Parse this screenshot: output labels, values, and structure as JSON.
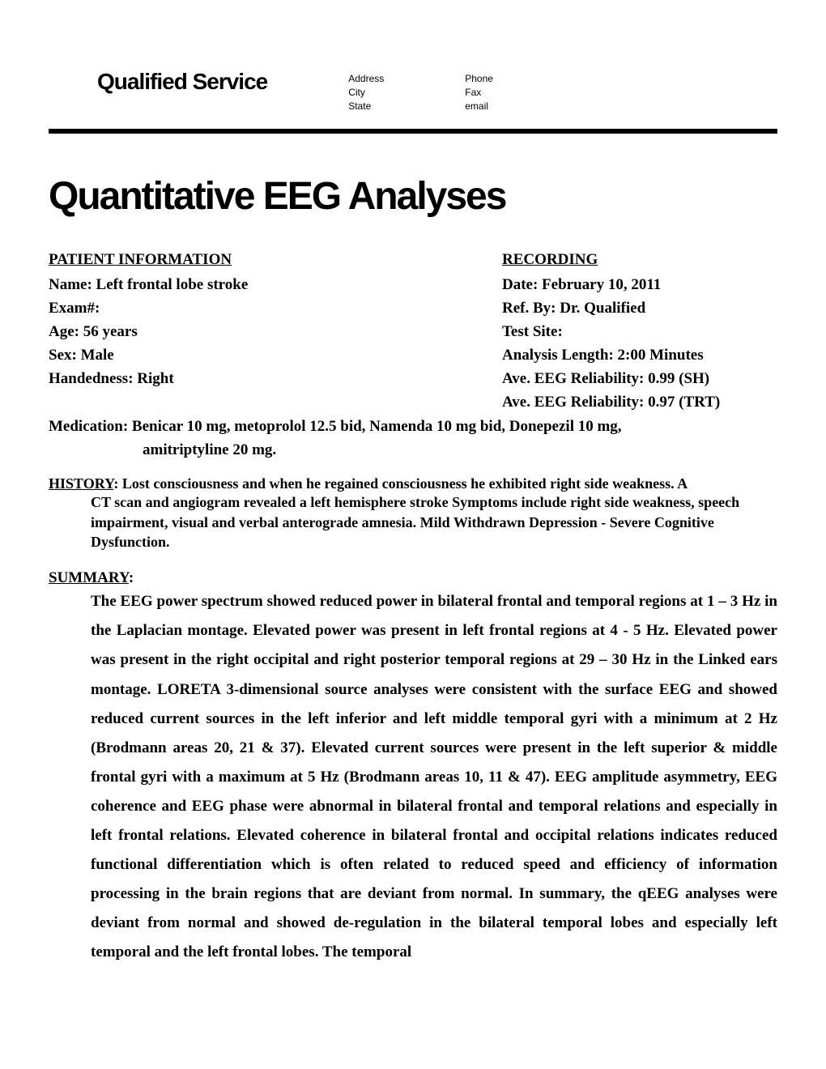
{
  "header": {
    "service_name": "Qualified Service",
    "col1": {
      "line1": "Address",
      "line2": "City",
      "line3": "State"
    },
    "col2": {
      "line1": "Phone",
      "line2": "Fax",
      "line3": "email"
    }
  },
  "main_title": "Quantitative EEG Analyses",
  "patient_info": {
    "header": "PATIENT INFORMATION",
    "name": "Name: Left frontal lobe stroke",
    "exam": "Exam#:",
    "age": "Age: 56 years",
    "sex": "Sex:  Male",
    "handedness": "Handedness:  Right"
  },
  "recording": {
    "header": "RECORDING ",
    "date": "Date: February 10, 2011",
    "ref_by": "Ref. By: Dr. Qualified",
    "test_site": "Test Site:",
    "analysis_length": "Analysis Length: 2:00 Minutes",
    "reliability_sh": "Ave. EEG Reliability: 0.99 (SH)",
    "reliability_trt": "Ave. EEG Reliability: 0.97 (TRT)"
  },
  "medication": {
    "line1": "Medication:  Benicar 10 mg, metoprolol 12.5 bid, Namenda 10 mg bid, Donepezil 10 mg,",
    "line2": "amitriptyline 20 mg."
  },
  "history": {
    "label": "HISTORY",
    "first_line": ":  Lost consciousness and when he regained consciousness he exhibited right side weakness.  A",
    "body": "CT scan and angiogram revealed a left hemisphere stroke  Symptoms include right side weakness, speech impairment, visual and verbal anterograde amnesia. Mild Withdrawn Depression - Severe Cognitive Dysfunction."
  },
  "summary": {
    "label": "SUMMARY",
    "colon": ":",
    "body": "The EEG power spectrum showed reduced power in bilateral frontal and temporal regions at 1 – 3 Hz in the Laplacian montage.   Elevated power was present in left frontal regions at 4 - 5 Hz.   Elevated power was present in the right occipital and right posterior temporal regions at 29 – 30 Hz in the Linked ears montage.  LORETA 3-dimensional source analyses were consistent with the surface EEG and showed reduced current sources in the left inferior and left middle temporal gyri with a minimum at 2 Hz (Brodmann areas 20, 21 & 37).   Elevated current sources were present in the left superior & middle frontal gyri  with a maximum at 5 Hz (Brodmann areas 10, 11 & 47).   EEG amplitude asymmetry, EEG coherence and EEG phase were abnormal in bilateral frontal and temporal relations and especially in left frontal relations.    Elevated coherence in bilateral frontal and occipital relations indicates reduced functional differentiation which is often related to reduced speed and efficiency of information processing in the brain regions that are deviant from normal.   In summary, the qEEG analyses were deviant from normal and showed de-regulation in the bilateral temporal lobes and especially left temporal and the left frontal lobes.   The temporal"
  }
}
